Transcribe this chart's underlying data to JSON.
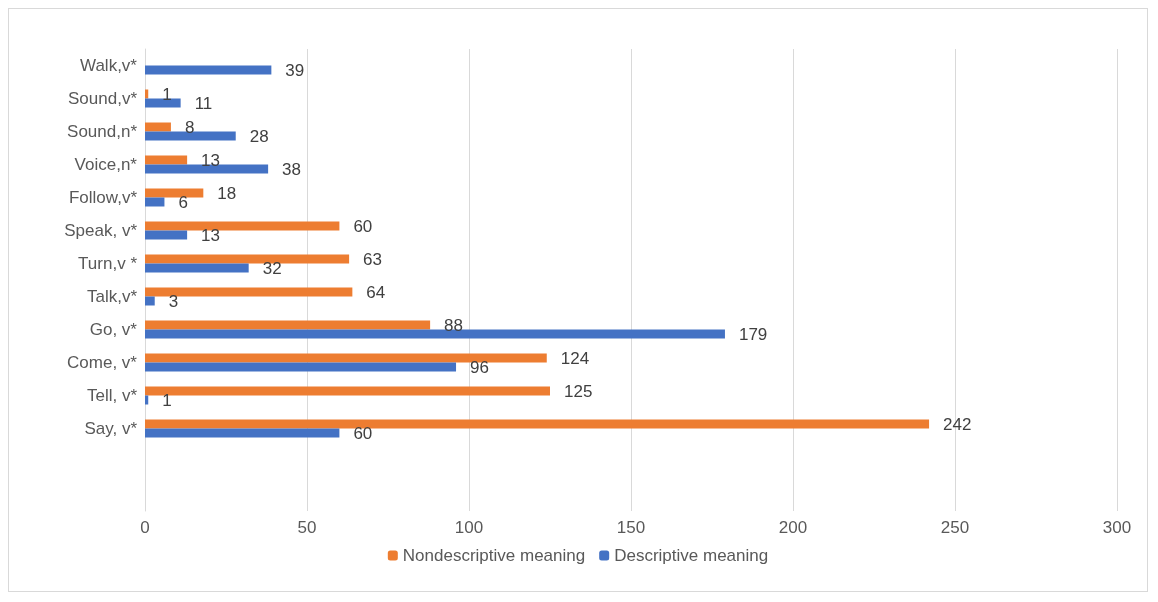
{
  "chart_data": {
    "type": "bar",
    "orientation": "horizontal",
    "categories": [
      "Walk,v*",
      "Sound,v*",
      "Sound,n*",
      "Voice,n*",
      "Follow,v*",
      "Speak, v*",
      "Turn,v *",
      "Talk,v*",
      "Go, v*",
      "Come, v*",
      "Tell, v*",
      "Say, v*",
      null,
      null
    ],
    "series": [
      {
        "name": "Nondescriptive meaning",
        "color": "#ed7d31",
        "values": [
          null,
          1,
          8,
          13,
          18,
          60,
          63,
          64,
          88,
          124,
          125,
          242,
          null,
          null
        ]
      },
      {
        "name": "Descriptive meaning",
        "color": "#4472c4",
        "values": [
          39,
          11,
          28,
          38,
          6,
          13,
          32,
          3,
          179,
          96,
          1,
          60,
          null,
          null
        ]
      }
    ],
    "xlim": [
      0,
      300
    ],
    "xticks": [
      0,
      50,
      100,
      150,
      200,
      250,
      300
    ],
    "grid": "x",
    "legend": "bottom",
    "data_labels": true
  }
}
